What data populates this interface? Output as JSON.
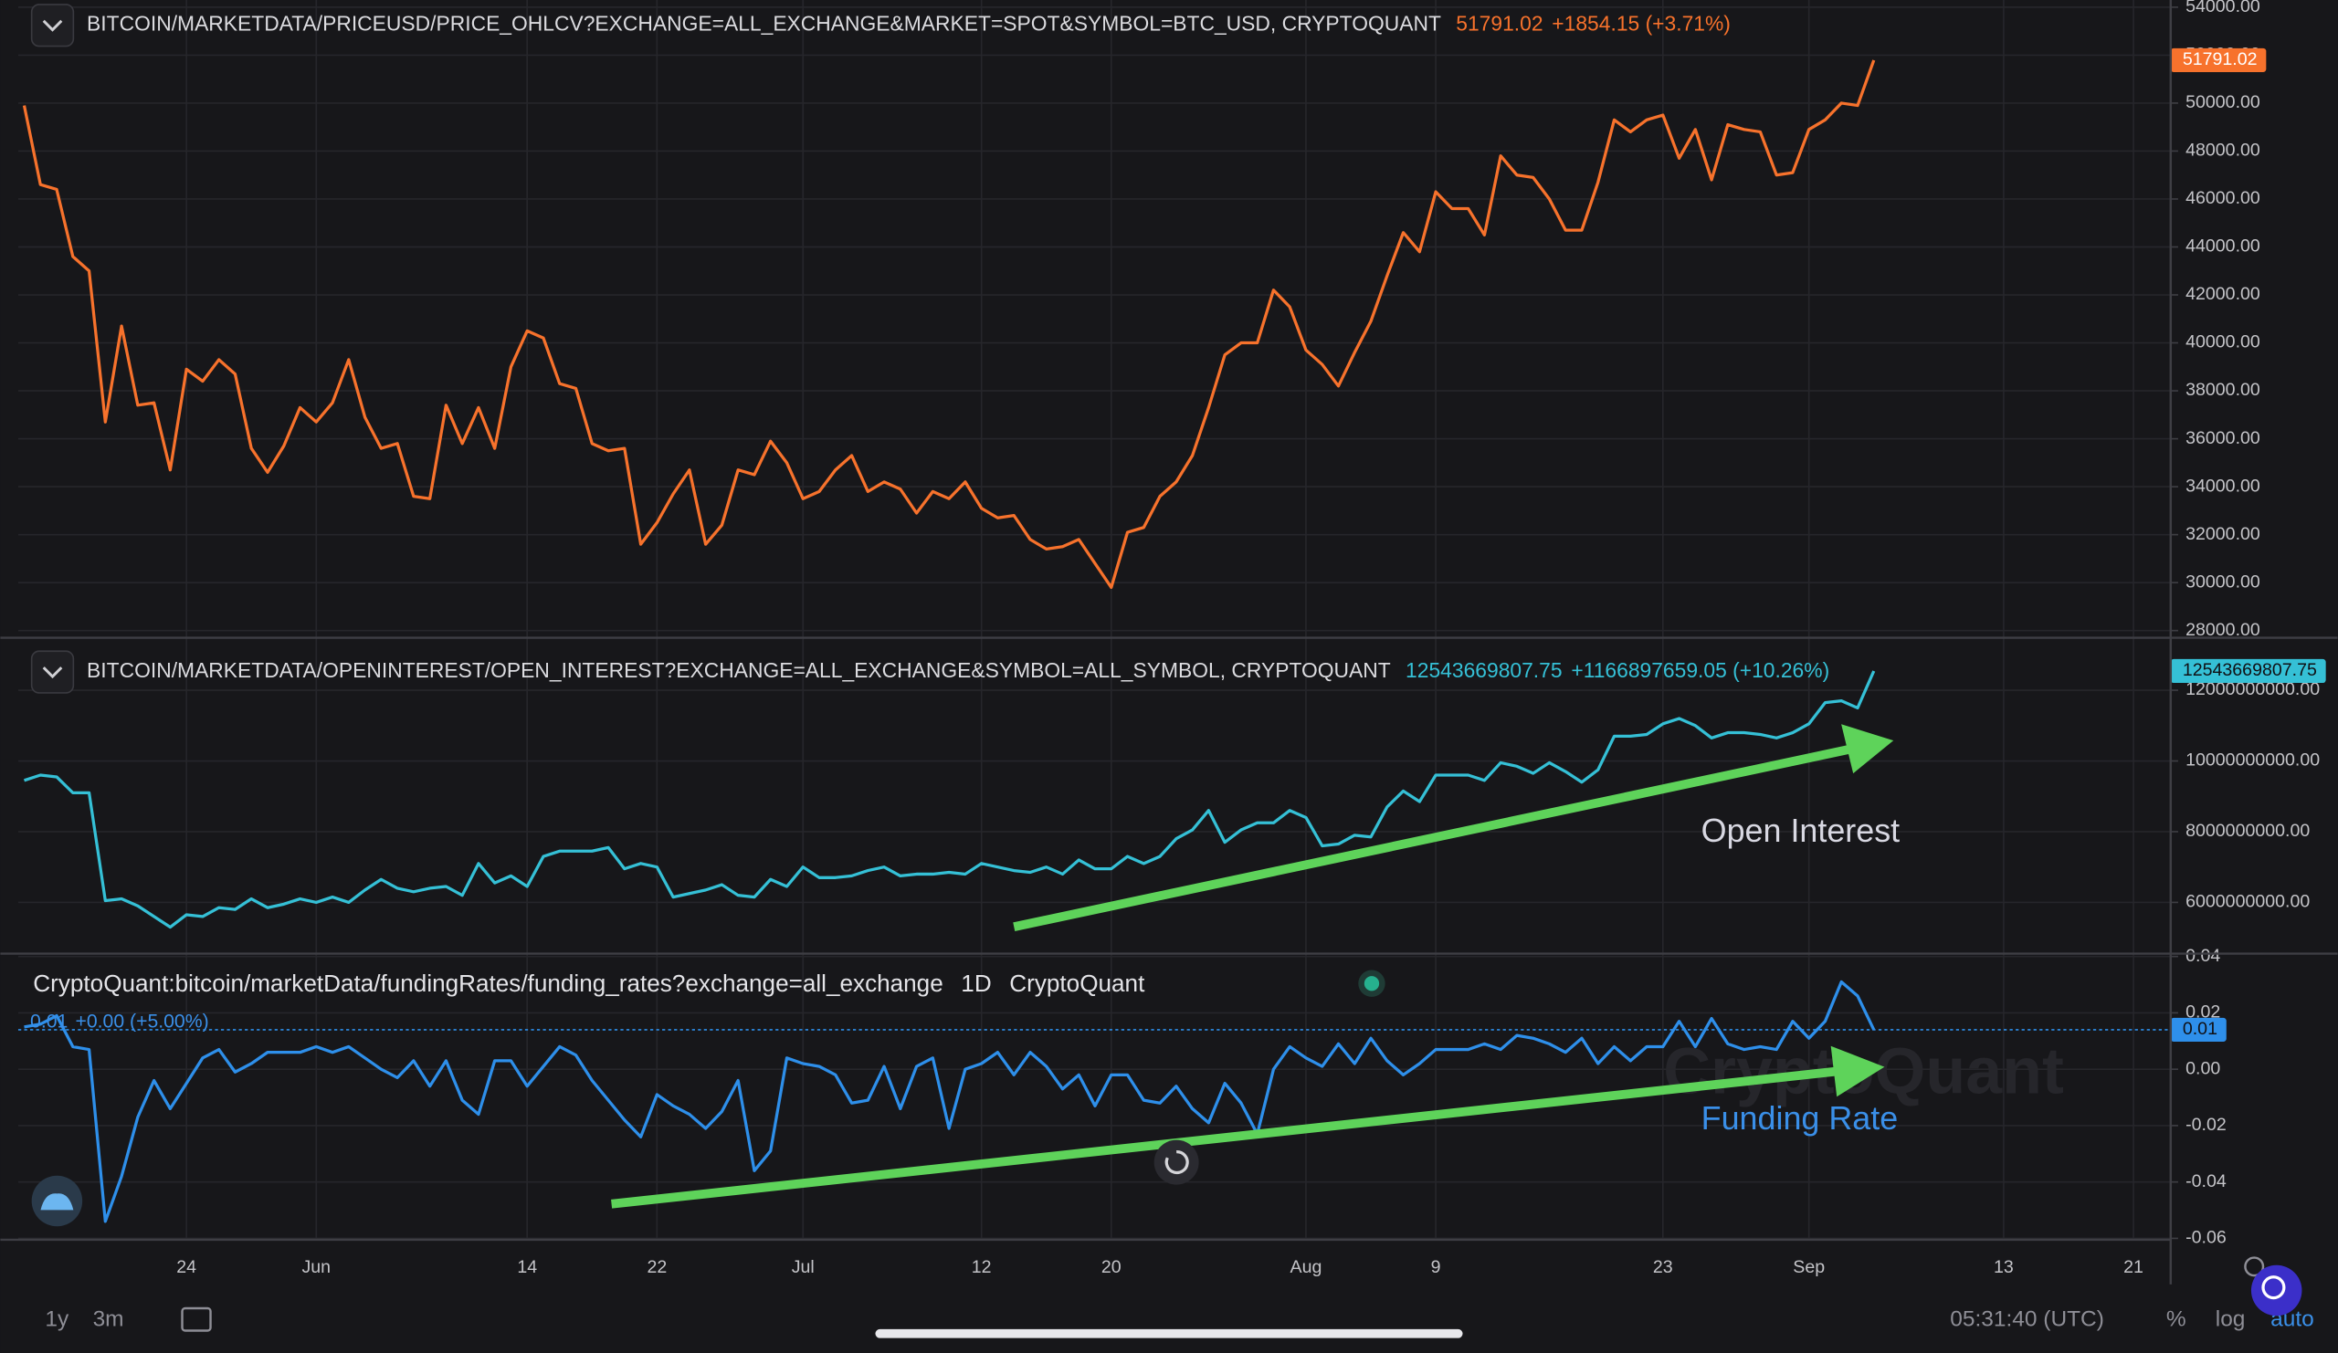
{
  "chart_data": [
    {
      "type": "line",
      "title": "BITCOIN/MARKETDATA/PRICEUSD/PRICE_OHLCV?EXCHANGE=ALL_EXCHANGE&MARKET=SPOT&SYMBOL=BTC_USD, CRYPTOQUANT",
      "change": "+1854.15 (+3.71%)",
      "color": "#f7722c",
      "grid": true,
      "ylim": [
        27700,
        54300
      ],
      "yticks": [
        {
          "value": 28000,
          "label": "28000.00"
        },
        {
          "value": 30000,
          "label": "30000.00"
        },
        {
          "value": 32000,
          "label": "32000.00"
        },
        {
          "value": 34000,
          "label": "34000.00"
        },
        {
          "value": 36000,
          "label": "36000.00"
        },
        {
          "value": 38000,
          "label": "38000.00"
        },
        {
          "value": 40000,
          "label": "40000.00"
        },
        {
          "value": 42000,
          "label": "42000.00"
        },
        {
          "value": 44000,
          "label": "44000.00"
        },
        {
          "value": 46000,
          "label": "46000.00"
        },
        {
          "value": 48000,
          "label": "48000.00"
        },
        {
          "value": 50000,
          "label": "50000.00"
        },
        {
          "value": 52000,
          "label": "52000.00"
        },
        {
          "value": 54000,
          "label": "54000.00"
        }
      ],
      "values": [
        49900,
        46600,
        46400,
        43600,
        43000,
        36700,
        40700,
        37400,
        37500,
        34700,
        38900,
        38400,
        39300,
        38700,
        35600,
        34600,
        35700,
        37300,
        36700,
        37500,
        39300,
        36900,
        35600,
        35800,
        33600,
        33500,
        37400,
        35800,
        37300,
        35600,
        39000,
        40500,
        40200,
        38300,
        38100,
        35800,
        35500,
        35600,
        31600,
        32500,
        33700,
        34700,
        31600,
        32400,
        34700,
        34500,
        35900,
        35000,
        33500,
        33800,
        34700,
        35300,
        33800,
        34200,
        33900,
        32900,
        33800,
        33500,
        34200,
        33100,
        32700,
        32800,
        31800,
        31400,
        31500,
        31800,
        30800,
        29800,
        32100,
        32300,
        33600,
        34200,
        35300,
        37300,
        39500,
        40000,
        40000,
        42200,
        41500,
        39700,
        39100,
        38200,
        39600,
        40900,
        42800,
        44600,
        43800,
        46300,
        45600,
        45600,
        44500,
        47800,
        47000,
        46900,
        46000,
        44700,
        44700,
        46700,
        49300,
        48800,
        49300,
        49500,
        47700,
        48900,
        46800,
        49100,
        48900,
        48800,
        47000,
        47100,
        48900,
        49300,
        50000,
        49900,
        51791.02,
        null,
        null,
        null,
        null,
        null,
        null,
        null,
        null,
        null,
        null,
        null,
        null,
        null,
        null,
        null,
        null
      ]
    },
    {
      "type": "line",
      "title": "BITCOIN/MARKETDATA/OPENINTEREST/OPEN_INTEREST?EXCHANGE=ALL_EXCHANGE&SYMBOL=ALL_SYMBOL, CRYPTOQUANT",
      "change": "+1166897659.05 (+10.26%)",
      "color": "#35c0d6",
      "grid": true,
      "annotation": "Open Interest",
      "ylim": [
        4550000000,
        13400000000
      ],
      "yticks": [
        {
          "value": 6000000000,
          "label": "6000000000.00"
        },
        {
          "value": 8000000000,
          "label": "8000000000.00"
        },
        {
          "value": 10000000000,
          "label": "10000000000.00"
        },
        {
          "value": 12000000000,
          "label": "12000000000.00"
        }
      ],
      "values": [
        9450000000.0,
        9600000000.0,
        9550000000.0,
        9100000000.0,
        9100000000.0,
        6050000000.0,
        6100000000.0,
        5900000000.0,
        5600000000.0,
        5300000000.0,
        5650000000.0,
        5600000000.0,
        5850000000.0,
        5800000000.0,
        6100000000.0,
        5850000000.0,
        5950000000.0,
        6100000000.0,
        6000000000.0,
        6150000000.0,
        6000000000.0,
        6350000000.0,
        6650000000.0,
        6400000000.0,
        6300000000.0,
        6400000000.0,
        6450000000.0,
        6200000000.0,
        7100000000.0,
        6550000000.0,
        6750000000.0,
        6450000000.0,
        7300000000.0,
        7450000000.0,
        7450000000.0,
        7450000000.0,
        7550000000.0,
        6950000000.0,
        7100000000.0,
        7000000000.0,
        6150000000.0,
        6250000000.0,
        6350000000.0,
        6500000000.0,
        6200000000.0,
        6150000000.0,
        6650000000.0,
        6450000000.0,
        7000000000.0,
        6700000000.0,
        6700000000.0,
        6750000000.0,
        6900000000.0,
        7000000000.0,
        6750000000.0,
        6800000000.0,
        6800000000.0,
        6850000000.0,
        6800000000.0,
        7100000000.0,
        7000000000.0,
        6900000000.0,
        6850000000.0,
        7000000000.0,
        6800000000.0,
        7200000000.0,
        6950000000.0,
        6950000000.0,
        7300000000.0,
        7100000000.0,
        7300000000.0,
        7800000000.0,
        8050000000.0,
        8600000000.0,
        7700000000.0,
        8050000000.0,
        8250000000.0,
        8250000000.0,
        8600000000.0,
        8400000000.0,
        7600000000.0,
        7650000000.0,
        7900000000.0,
        7850000000.0,
        8700000000.0,
        9150000000.0,
        8850000000.0,
        9600000000.0,
        9600000000.0,
        9600000000.0,
        9450000000.0,
        9950000000.0,
        9850000000.0,
        9650000000.0,
        9950000000.0,
        9700000000.0,
        9400000000.0,
        9750000000.0,
        10700000000.0,
        10700000000.0,
        10750000000.0,
        11050000000.0,
        11200000000.0,
        11000000000.0,
        10650000000.0,
        10800000000.0,
        10800000000.0,
        10750000000.0,
        10650000000.0,
        10800000000.0,
        11050000000.0,
        11650000000.0,
        11700000000.0,
        11500000000.0,
        12543669807.75,
        null,
        null,
        null,
        null,
        null,
        null,
        null,
        null,
        null,
        null,
        null,
        null,
        null,
        null,
        null,
        null
      ]
    },
    {
      "type": "line",
      "title": "CryptoQuant:bitcoin/marketData/fundingRates/funding_rates?exchange=all_exchange",
      "interval": "1D",
      "source": "CryptoQuant",
      "last_label": "0.01",
      "change": "+0.00 (+5.00%)",
      "color": "#2e8fea",
      "grid": true,
      "price_line": true,
      "annotation": "Funding Rate",
      "watermark": "CryptoQuant",
      "ylim": [
        -0.0605,
        0.041
      ],
      "yticks": [
        -0.06,
        -0.04,
        -0.02,
        {
          "value": 0,
          "label": "0.00"
        },
        0.02,
        0.04
      ],
      "values": [
        0.015,
        0.016,
        0.019,
        0.008,
        0.007,
        -0.054,
        -0.038,
        -0.017,
        -0.004,
        -0.014,
        -0.005,
        0.004,
        0.007,
        -0.001,
        0.002,
        0.006,
        0.006,
        0.006,
        0.008,
        0.006,
        0.008,
        0.004,
        0,
        -0.003,
        0.003,
        -0.006,
        0.003,
        -0.011,
        -0.016,
        0.003,
        0.003,
        -0.006,
        0.001,
        0.008,
        0.005,
        -0.004,
        -0.011,
        -0.018,
        -0.024,
        -0.009,
        -0.013,
        -0.016,
        -0.021,
        -0.015,
        -0.004,
        -0.036,
        -0.029,
        0.004,
        0.002,
        0.001,
        -0.002,
        -0.012,
        -0.011,
        0.001,
        -0.014,
        0.001,
        0.004,
        -0.021,
        0,
        0.002,
        0.006,
        -0.002,
        0.006,
        0.001,
        -0.007,
        -0.002,
        -0.013,
        -0.002,
        -0.002,
        -0.011,
        -0.012,
        -0.006,
        -0.014,
        -0.019,
        -0.005,
        -0.012,
        -0.023,
        0,
        0.008,
        0.004,
        0.001,
        0.009,
        0.002,
        0.011,
        0.003,
        -0.002,
        0.002,
        0.007,
        0.007,
        0.007,
        0.009,
        0.007,
        0.012,
        0.011,
        0.009,
        0.006,
        0.011,
        0.002,
        0.008,
        0.003,
        0.008,
        0.008,
        0.017,
        0.008,
        0.018,
        0.009,
        0.007,
        0.008,
        0.007,
        0.017,
        0.011,
        0.017,
        0.031,
        0.026,
        0.014,
        null,
        null,
        null,
        null,
        null,
        null,
        null,
        null,
        null,
        null,
        null,
        null,
        null,
        null,
        null,
        null
      ],
      "categories": [
        null,
        null,
        null,
        null,
        null,
        null,
        null,
        null,
        null,
        null,
        "24",
        null,
        null,
        null,
        null,
        null,
        null,
        null,
        "Jun",
        null,
        null,
        null,
        null,
        null,
        null,
        null,
        null,
        null,
        null,
        null,
        null,
        "14",
        null,
        null,
        null,
        null,
        null,
        null,
        null,
        "22",
        null,
        null,
        null,
        null,
        null,
        null,
        null,
        null,
        "Jul",
        null,
        null,
        null,
        null,
        null,
        null,
        null,
        null,
        null,
        null,
        "12",
        null,
        null,
        null,
        null,
        null,
        null,
        null,
        "20",
        null,
        null,
        null,
        null,
        null,
        null,
        null,
        null,
        null,
        null,
        null,
        "Aug",
        null,
        null,
        null,
        null,
        null,
        null,
        null,
        "9",
        null,
        null,
        null,
        null,
        null,
        null,
        null,
        null,
        null,
        null,
        null,
        null,
        null,
        "23",
        null,
        null,
        null,
        null,
        null,
        null,
        null,
        null,
        "Sep",
        null,
        null,
        null,
        null,
        null,
        null,
        null,
        null,
        null,
        null,
        null,
        "13",
        null,
        null,
        null,
        null,
        null,
        null,
        null,
        "21"
      ]
    }
  ],
  "toolbar": {
    "ranges": [
      "1y",
      "3m"
    ],
    "clock": "05:31:40 (UTC)",
    "options": [
      "%",
      "log",
      "auto"
    ]
  }
}
